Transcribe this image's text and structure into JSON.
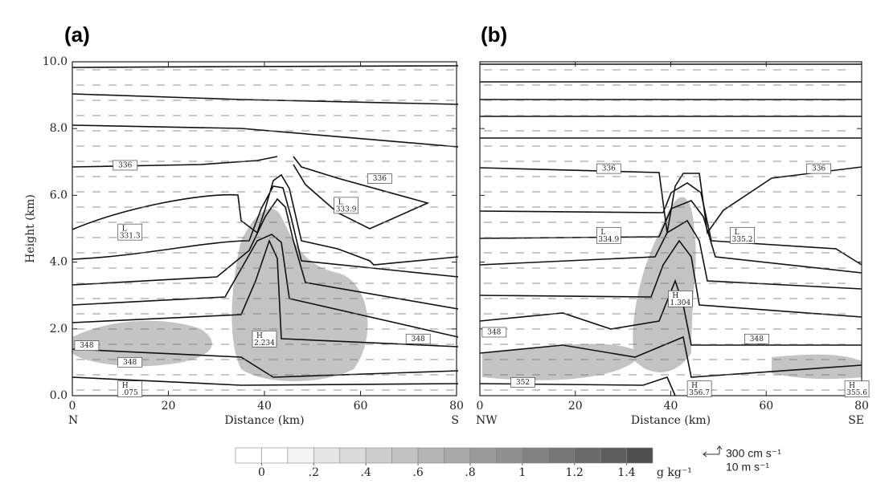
{
  "chart_data": [
    {
      "type": "cross-section",
      "panel": "(a)",
      "xlabel": "Distance (km)",
      "ylabel": "Height (km)",
      "left_label": "N",
      "right_label": "S",
      "xlim": [
        0,
        80
      ],
      "ylim": [
        0,
        10
      ],
      "xticks": [
        0,
        20,
        40,
        60,
        80
      ],
      "yticks": [
        {
          "value": 0,
          "label": "0.0"
        },
        {
          "value": 2,
          "label": "2.0"
        },
        {
          "value": 4,
          "label": "4.0"
        },
        {
          "value": 6,
          "label": "6.0"
        },
        {
          "value": 8,
          "label": "8.0"
        },
        {
          "value": 10,
          "label": "10.0"
        }
      ],
      "annotations": [
        {
          "x": 11,
          "y": 6.9,
          "text": "336"
        },
        {
          "x": 64,
          "y": 6.5,
          "text": "336"
        },
        {
          "x": 57,
          "y": 5.7,
          "marker": "L",
          "text": "333.9"
        },
        {
          "x": 12,
          "y": 4.9,
          "marker": "L",
          "text": "331.3"
        },
        {
          "x": 40,
          "y": 1.7,
          "marker": "H",
          "text": "2.234"
        },
        {
          "x": 3,
          "y": 1.5,
          "text": "348"
        },
        {
          "x": 72,
          "y": 1.7,
          "text": "348"
        },
        {
          "x": 12,
          "y": 1.0,
          "text": "348"
        },
        {
          "x": 12,
          "y": 0.2,
          "marker": "H",
          "text": ".075"
        }
      ]
    },
    {
      "type": "cross-section",
      "panel": "(b)",
      "xlabel": "Distance (km)",
      "left_label": "NW",
      "right_label": "SE",
      "xlim": [
        0,
        80
      ],
      "ylim": [
        0,
        10
      ],
      "xticks": [
        0,
        20,
        40,
        60,
        80
      ],
      "yticks": [
        0,
        2,
        4,
        6,
        8,
        10
      ],
      "annotations": [
        {
          "x": 27,
          "y": 6.8,
          "text": "336"
        },
        {
          "x": 71,
          "y": 6.8,
          "text": "336"
        },
        {
          "x": 27,
          "y": 4.8,
          "marker": "L",
          "text": "334.9"
        },
        {
          "x": 55,
          "y": 4.8,
          "marker": "L",
          "text": "335.2"
        },
        {
          "x": 42,
          "y": 2.9,
          "marker": "H",
          "text": "1.304"
        },
        {
          "x": 3,
          "y": 1.9,
          "text": "348"
        },
        {
          "x": 58,
          "y": 1.7,
          "text": "348"
        },
        {
          "x": 9,
          "y": 0.4,
          "text": "352"
        },
        {
          "x": 46,
          "y": 0.2,
          "marker": "H",
          "text": "356.7"
        },
        {
          "x": 79,
          "y": 0.2,
          "marker": "H",
          "text": "355.6"
        }
      ]
    }
  ],
  "colorbar": {
    "unit": "g kg⁻¹",
    "lim": [
      -0.1,
      1.5
    ],
    "ticks": [
      0,
      {
        "value": 0.2,
        "label": ".2"
      },
      {
        "value": 0.4,
        "label": ".4"
      },
      {
        "value": 0.6,
        "label": ".6"
      },
      {
        "value": 0.8,
        "label": ".8"
      },
      1,
      {
        "value": 1.2,
        "label": "1.2"
      },
      {
        "value": 1.4,
        "label": "1.4"
      }
    ]
  },
  "wind_reference": {
    "labels": [
      "300 cm s⁻¹",
      "10 m s⁻¹"
    ]
  }
}
